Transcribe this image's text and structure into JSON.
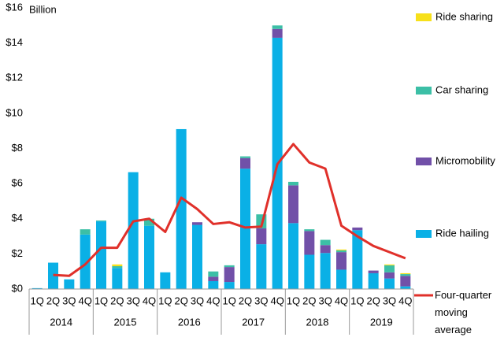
{
  "chart_data": {
    "type": "stacked-bar-line",
    "y_unit_label": "Billion",
    "categories": [
      "1Q",
      "2Q",
      "3Q",
      "4Q",
      "1Q",
      "2Q",
      "3Q",
      "4Q",
      "1Q",
      "2Q",
      "3Q",
      "4Q",
      "1Q",
      "2Q",
      "3Q",
      "4Q",
      "1Q",
      "2Q",
      "3Q",
      "4Q",
      "1Q",
      "2Q",
      "3Q",
      "4Q"
    ],
    "years": [
      "2014",
      "2015",
      "2016",
      "2017",
      "2018",
      "2019"
    ],
    "series": [
      {
        "name": "Ride hailing",
        "color": "#0ab0e6",
        "values": [
          0.05,
          1.5,
          0.55,
          3.1,
          3.85,
          1.2,
          6.65,
          3.6,
          0.95,
          9.1,
          3.65,
          0.45,
          0.4,
          6.85,
          2.55,
          14.3,
          3.75,
          1.95,
          2.05,
          1.1,
          3.35,
          0.9,
          0.6,
          0.15
        ]
      },
      {
        "name": "Micromobility",
        "color": "#7150a8",
        "values": [
          0,
          0,
          0,
          0,
          0,
          0,
          0,
          0,
          0,
          0,
          0.15,
          0.25,
          0.85,
          0.6,
          0.9,
          0.5,
          2.15,
          1.35,
          0.45,
          1.0,
          0.15,
          0.15,
          0.35,
          0.6
        ]
      },
      {
        "name": "Car sharing",
        "color": "#3cbfa6",
        "values": [
          0,
          0,
          0,
          0.3,
          0.05,
          0.1,
          0,
          0.4,
          0,
          0,
          0,
          0.3,
          0.1,
          0.1,
          0.8,
          0.2,
          0.2,
          0.1,
          0.3,
          0.1,
          0,
          0,
          0.4,
          0.1
        ]
      },
      {
        "name": "Ride sharing",
        "color": "#f7e01a",
        "values": [
          0,
          0,
          0,
          0,
          0,
          0.1,
          0,
          0,
          0,
          0,
          0,
          0,
          0,
          0,
          0,
          0,
          0,
          0,
          0,
          0.05,
          0,
          0,
          0.05,
          0.05
        ]
      }
    ],
    "line": {
      "name": "Four-quarter moving average",
      "color": "#e0302a",
      "values": [
        null,
        0.8,
        0.75,
        1.4,
        2.35,
        2.35,
        3.85,
        4.0,
        3.25,
        5.2,
        4.55,
        3.7,
        3.8,
        3.5,
        3.55,
        7.1,
        8.25,
        7.2,
        6.85,
        3.6,
        3.0,
        2.45,
        2.1,
        1.75
      ]
    },
    "ylim": [
      0,
      16
    ],
    "yticks": [
      {
        "value": 0,
        "label": "$0"
      },
      {
        "value": 2,
        "label": "$2"
      },
      {
        "value": 4,
        "label": "$4"
      },
      {
        "value": 6,
        "label": "$6"
      },
      {
        "value": 8,
        "label": "$8"
      },
      {
        "value": 10,
        "label": "$10"
      },
      {
        "value": 12,
        "label": "$12"
      },
      {
        "value": 14,
        "label": "$14"
      },
      {
        "value": 16,
        "label": "$16"
      }
    ]
  }
}
